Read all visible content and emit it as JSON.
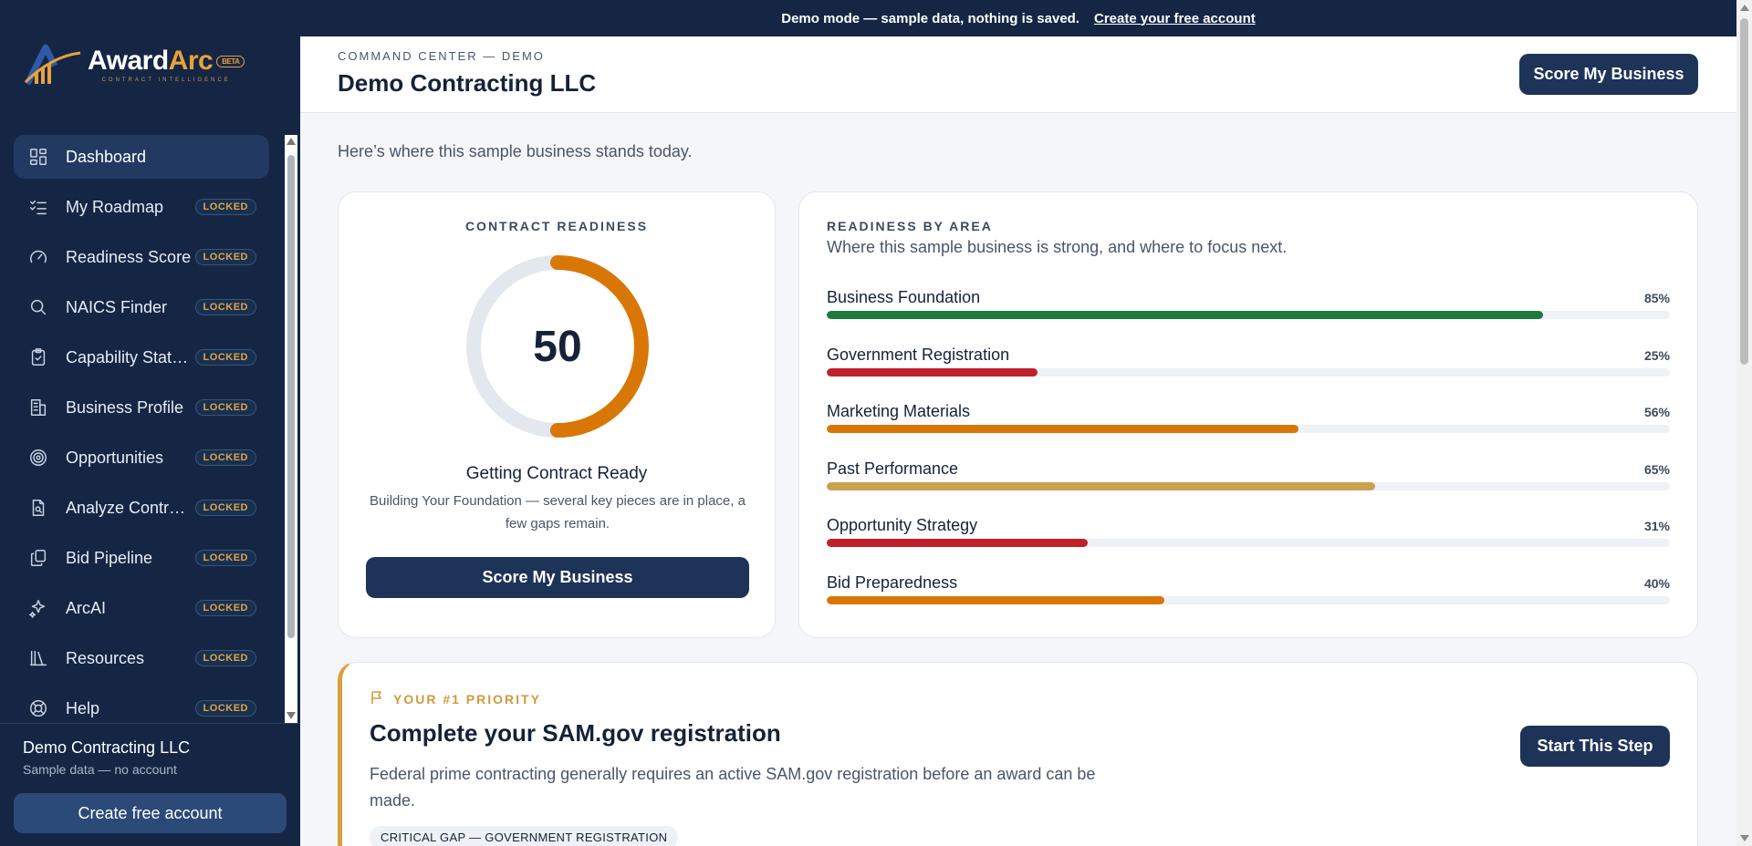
{
  "brand": {
    "name_part1": "Award",
    "name_part2": "Arc",
    "badge": "BETA",
    "tagline": "CONTRACT INTELLIGENCE"
  },
  "banner": {
    "text": "Demo mode — sample data, nothing is saved.",
    "link": "Create your free account"
  },
  "sidebar": {
    "items": [
      {
        "label": "Dashboard",
        "icon": "dashboard-grid-icon",
        "locked": ""
      },
      {
        "label": "My Roadmap",
        "icon": "checklist-icon",
        "locked": "LOCKED"
      },
      {
        "label": "Readiness Score",
        "icon": "gauge-icon",
        "locked": "LOCKED"
      },
      {
        "label": "NAICS Finder",
        "icon": "search-icon",
        "locked": "LOCKED"
      },
      {
        "label": "Capability Statement",
        "icon": "clipboard-icon",
        "locked": "LOCKED"
      },
      {
        "label": "Business Profile",
        "icon": "building-icon",
        "locked": "LOCKED"
      },
      {
        "label": "Opportunities",
        "icon": "target-icon",
        "locked": "LOCKED"
      },
      {
        "label": "Analyze Contracts",
        "icon": "document-search-icon",
        "locked": "LOCKED"
      },
      {
        "label": "Bid Pipeline",
        "icon": "copy-icon",
        "locked": "LOCKED"
      },
      {
        "label": "ArcAI",
        "icon": "sparkle-icon",
        "locked": "LOCKED"
      },
      {
        "label": "Resources",
        "icon": "library-icon",
        "locked": "LOCKED"
      },
      {
        "label": "Help",
        "icon": "lifebuoy-icon",
        "locked": "LOCKED"
      }
    ],
    "footer": {
      "company": "Demo Contracting LLC",
      "note": "Sample data — no account",
      "create_label": "Create free account"
    }
  },
  "header": {
    "eyebrow": "COMMAND CENTER — DEMO",
    "title": "Demo Contracting LLC",
    "score_label": "Score My Business"
  },
  "intro": "Here’s where this sample business stands today.",
  "readiness": {
    "title": "CONTRACT READINESS",
    "score": "50",
    "score_fraction": 0.5,
    "status": "Getting Contract Ready",
    "description": "Building Your Foundation — several key pieces are in place, a few gaps remain.",
    "button_label": "Score My Business",
    "color": "#d97706"
  },
  "areas": {
    "title": "READINESS BY AREA",
    "subtitle": "Where this sample business is strong, and where to focus next.",
    "items": [
      {
        "label": "Business Foundation",
        "pct": "85%",
        "value": 85,
        "color": "#1e7a3c"
      },
      {
        "label": "Government Registration",
        "pct": "25%",
        "value": 25,
        "color": "#c0202a"
      },
      {
        "label": "Marketing Materials",
        "pct": "56%",
        "value": 56,
        "color": "#d97706"
      },
      {
        "label": "Past Performance",
        "pct": "65%",
        "value": 65,
        "color": "#c9a24e"
      },
      {
        "label": "Opportunity Strategy",
        "pct": "31%",
        "value": 31,
        "color": "#c0202a"
      },
      {
        "label": "Bid Preparedness",
        "pct": "40%",
        "value": 40,
        "color": "#d97706"
      }
    ]
  },
  "priority": {
    "eyebrow": "YOUR #1 PRIORITY",
    "title": "Complete your SAM.gov registration",
    "description": "Federal prime contracting generally requires an active SAM.gov registration before an award can be made.",
    "tag": "CRITICAL GAP — GOVERNMENT REGISTRATION",
    "button_label": "Start This Step"
  }
}
